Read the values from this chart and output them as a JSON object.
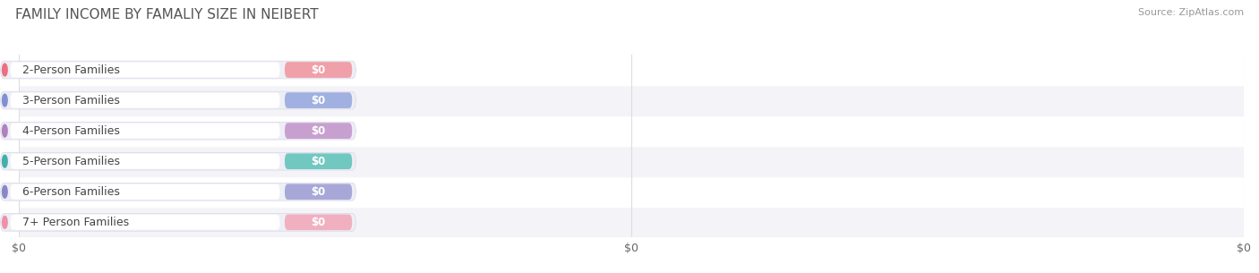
{
  "title": "FAMILY INCOME BY FAMALIY SIZE IN NEIBERT",
  "source": "Source: ZipAtlas.com",
  "categories": [
    "2-Person Families",
    "3-Person Families",
    "4-Person Families",
    "5-Person Families",
    "6-Person Families",
    "7+ Person Families"
  ],
  "values": [
    0,
    0,
    0,
    0,
    0,
    0
  ],
  "bar_colors": [
    "#f0a0a8",
    "#a0b0e0",
    "#c8a0d0",
    "#70c8c0",
    "#a8a8d8",
    "#f0b0c0"
  ],
  "dot_colors": [
    "#e87080",
    "#8090d0",
    "#b080c0",
    "#40b0a8",
    "#8888c8",
    "#f090a8"
  ],
  "bg_color": "#ffffff",
  "row_colors": [
    "#f4f4f8",
    "#ffffff"
  ],
  "grid_color": "#dddddd",
  "title_fontsize": 11,
  "label_fontsize": 9,
  "value_fontsize": 8.5,
  "source_fontsize": 8,
  "xtick_labels": [
    "$0",
    "$0",
    "$0"
  ],
  "xtick_positions": [
    0,
    50,
    100
  ]
}
